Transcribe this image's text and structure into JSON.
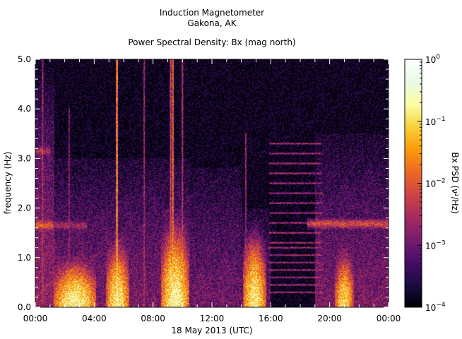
{
  "chart_data": {
    "type": "heatmap",
    "title": "Induction Magnetometer",
    "subtitle": "Gakona, AK",
    "plot_title": "Power Spectral Density: Bx (mag north)",
    "xlabel": "18 May 2013 (UTC)",
    "ylabel": "frequency (Hz)",
    "x_ticks": [
      "00:00",
      "04:00",
      "08:00",
      "12:00",
      "16:00",
      "20:00",
      "00:00"
    ],
    "x_range_hours": [
      0,
      24
    ],
    "y_ticks": [
      "0.0",
      "1.0",
      "2.0",
      "3.0",
      "4.0",
      "5.0"
    ],
    "y_range": [
      0,
      5
    ],
    "colorbar": {
      "label": "Bx PSD (ν²/Hz)",
      "scale": "log",
      "range": [
        0.0001,
        1
      ],
      "ticks": [
        {
          "base": "10",
          "exp": "0"
        },
        {
          "base": "10",
          "exp": "−1"
        },
        {
          "base": "10",
          "exp": "−2"
        },
        {
          "base": "10",
          "exp": "−3"
        },
        {
          "base": "10",
          "exp": "−4"
        }
      ],
      "colormap": [
        "#000004",
        "#1b0c41",
        "#4a0c6b",
        "#781c6d",
        "#a52c60",
        "#cf4446",
        "#ed6925",
        "#fb9b06",
        "#f7d13d",
        "#fcffa4",
        "#e8fbe8",
        "#ffffff"
      ]
    },
    "background_level": 0.00012,
    "features": [
      {
        "kind": "band",
        "hour_start": 0.0,
        "hour_end": 1.2,
        "freq_hz": 1.65,
        "level": 0.01
      },
      {
        "kind": "band",
        "hour_start": 0.0,
        "hour_end": 1.0,
        "freq_hz": 3.15,
        "level": 0.003
      },
      {
        "kind": "band",
        "hour_start": 1.0,
        "hour_end": 3.5,
        "freq_hz": 1.65,
        "level": 0.002
      },
      {
        "kind": "band",
        "hour_start": 18.5,
        "hour_end": 24.0,
        "freq_hz": 1.68,
        "level": 0.006
      },
      {
        "kind": "noise_burst",
        "hour_start": 0.0,
        "hour_end": 1.3,
        "freq_top_hz": 5.0,
        "level": 0.002
      },
      {
        "kind": "noise_burst",
        "hour_start": 1.3,
        "hour_end": 10.5,
        "freq_top_hz": 3.0,
        "level": 0.0012
      },
      {
        "kind": "noise_burst",
        "hour_start": 10.5,
        "hour_end": 14.0,
        "freq_top_hz": 2.8,
        "level": 0.001
      },
      {
        "kind": "noise_burst",
        "hour_start": 14.0,
        "hour_end": 16.0,
        "freq_top_hz": 2.0,
        "level": 0.0008
      },
      {
        "kind": "noise_burst",
        "hour_start": 19.0,
        "hour_end": 24.0,
        "freq_top_hz": 3.5,
        "level": 0.0012
      },
      {
        "kind": "plume",
        "hour": 2.7,
        "width_hours": 1.8,
        "freq_top_hz": 0.5,
        "level": 0.2
      },
      {
        "kind": "plume",
        "hour": 5.6,
        "width_hours": 1.0,
        "freq_top_hz": 0.7,
        "level": 0.15
      },
      {
        "kind": "plume",
        "hour": 9.5,
        "width_hours": 1.2,
        "freq_top_hz": 0.9,
        "level": 0.2
      },
      {
        "kind": "plume",
        "hour": 14.9,
        "width_hours": 1.0,
        "freq_top_hz": 0.8,
        "level": 0.15
      },
      {
        "kind": "plume",
        "hour": 21.0,
        "width_hours": 0.8,
        "freq_top_hz": 0.6,
        "level": 0.1
      },
      {
        "kind": "line",
        "hour": 5.55,
        "freq_top_hz": 5.0,
        "level": 0.05
      },
      {
        "kind": "line",
        "hour": 9.35,
        "freq_top_hz": 5.0,
        "level": 0.02
      },
      {
        "kind": "line",
        "hour": 9.2,
        "freq_top_hz": 5.0,
        "level": 0.008
      },
      {
        "kind": "line",
        "hour": 10.0,
        "freq_top_hz": 5.0,
        "level": 0.004
      },
      {
        "kind": "line",
        "hour": 7.4,
        "freq_top_hz": 5.0,
        "level": 0.003
      },
      {
        "kind": "line",
        "hour": 0.5,
        "freq_top_hz": 5.0,
        "level": 0.003
      },
      {
        "kind": "line",
        "hour": 2.3,
        "freq_top_hz": 4.0,
        "level": 0.002
      },
      {
        "kind": "line",
        "hour": 14.3,
        "freq_top_hz": 3.5,
        "level": 0.003
      },
      {
        "kind": "harmonic_comb",
        "hour_start": 15.9,
        "hour_end": 19.5,
        "freqs_hz": [
          0.3,
          0.45,
          0.6,
          0.75,
          0.9,
          1.05,
          1.2,
          1.3,
          1.5,
          1.7,
          1.9,
          2.1,
          2.3,
          2.5,
          2.7,
          2.9,
          3.1,
          3.3
        ],
        "level": 0.003
      }
    ]
  }
}
